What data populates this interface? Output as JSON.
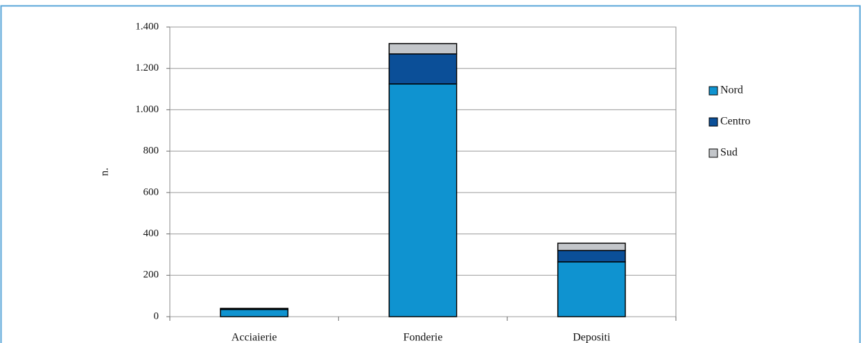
{
  "chart_data": {
    "type": "stacked-bar",
    "y_label": "n.",
    "categories": [
      "Acciaierie",
      "Fonderie",
      "Depositi"
    ],
    "series": [
      {
        "name": "Nord",
        "color": "#0f93d0",
        "values": [
          35,
          1125,
          265
        ]
      },
      {
        "name": "Centro",
        "color": "#0b4f98",
        "values": [
          5,
          145,
          55
        ]
      },
      {
        "name": "Sud",
        "color": "#c3c6ca",
        "values": [
          0,
          50,
          35
        ]
      }
    ],
    "ylim": [
      0,
      1400
    ],
    "yticks": [
      0,
      200,
      400,
      600,
      800,
      {
        "value": 1000,
        "label": "1.000"
      },
      {
        "value": 1200,
        "label": "1.200"
      },
      {
        "value": 1400,
        "label": "1.400"
      }
    ],
    "grid": true,
    "legend": "right"
  }
}
